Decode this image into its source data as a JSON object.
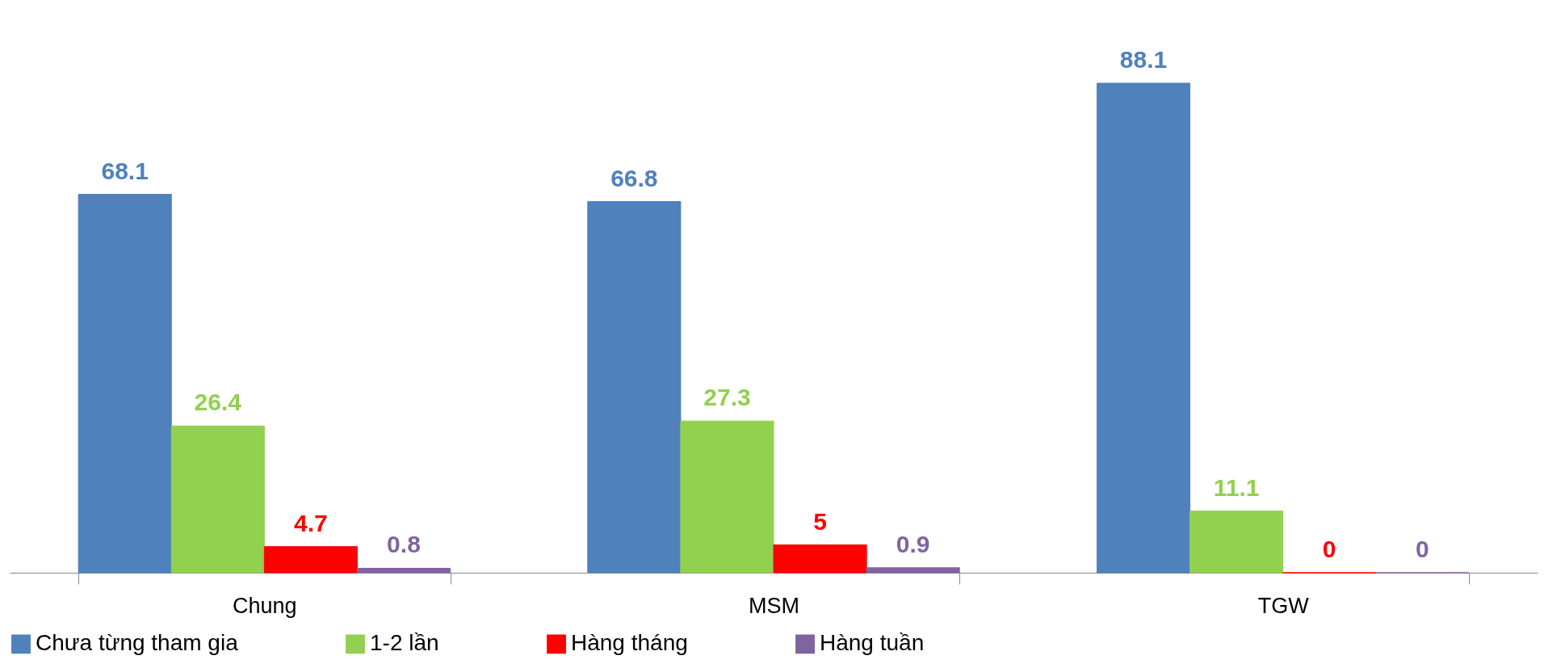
{
  "chart_data": {
    "type": "bar",
    "categories": [
      "Chung",
      "MSM",
      "TGW"
    ],
    "series": [
      {
        "name": "Chưa từng tham gia",
        "color": "#4f81bd",
        "values": [
          68.1,
          66.8,
          88.1
        ]
      },
      {
        "name": "1-2 lần",
        "color": "#92d050",
        "values": [
          26.4,
          27.3,
          11.1
        ]
      },
      {
        "name": "Hàng tháng",
        "color": "#ff0000",
        "values": [
          4.7,
          5,
          0
        ]
      },
      {
        "name": "Hàng tuần",
        "color": "#8064a2",
        "values": [
          0.8,
          0.9,
          0
        ]
      }
    ],
    "data_labels": true,
    "grid": false,
    "legend": "bottom"
  }
}
